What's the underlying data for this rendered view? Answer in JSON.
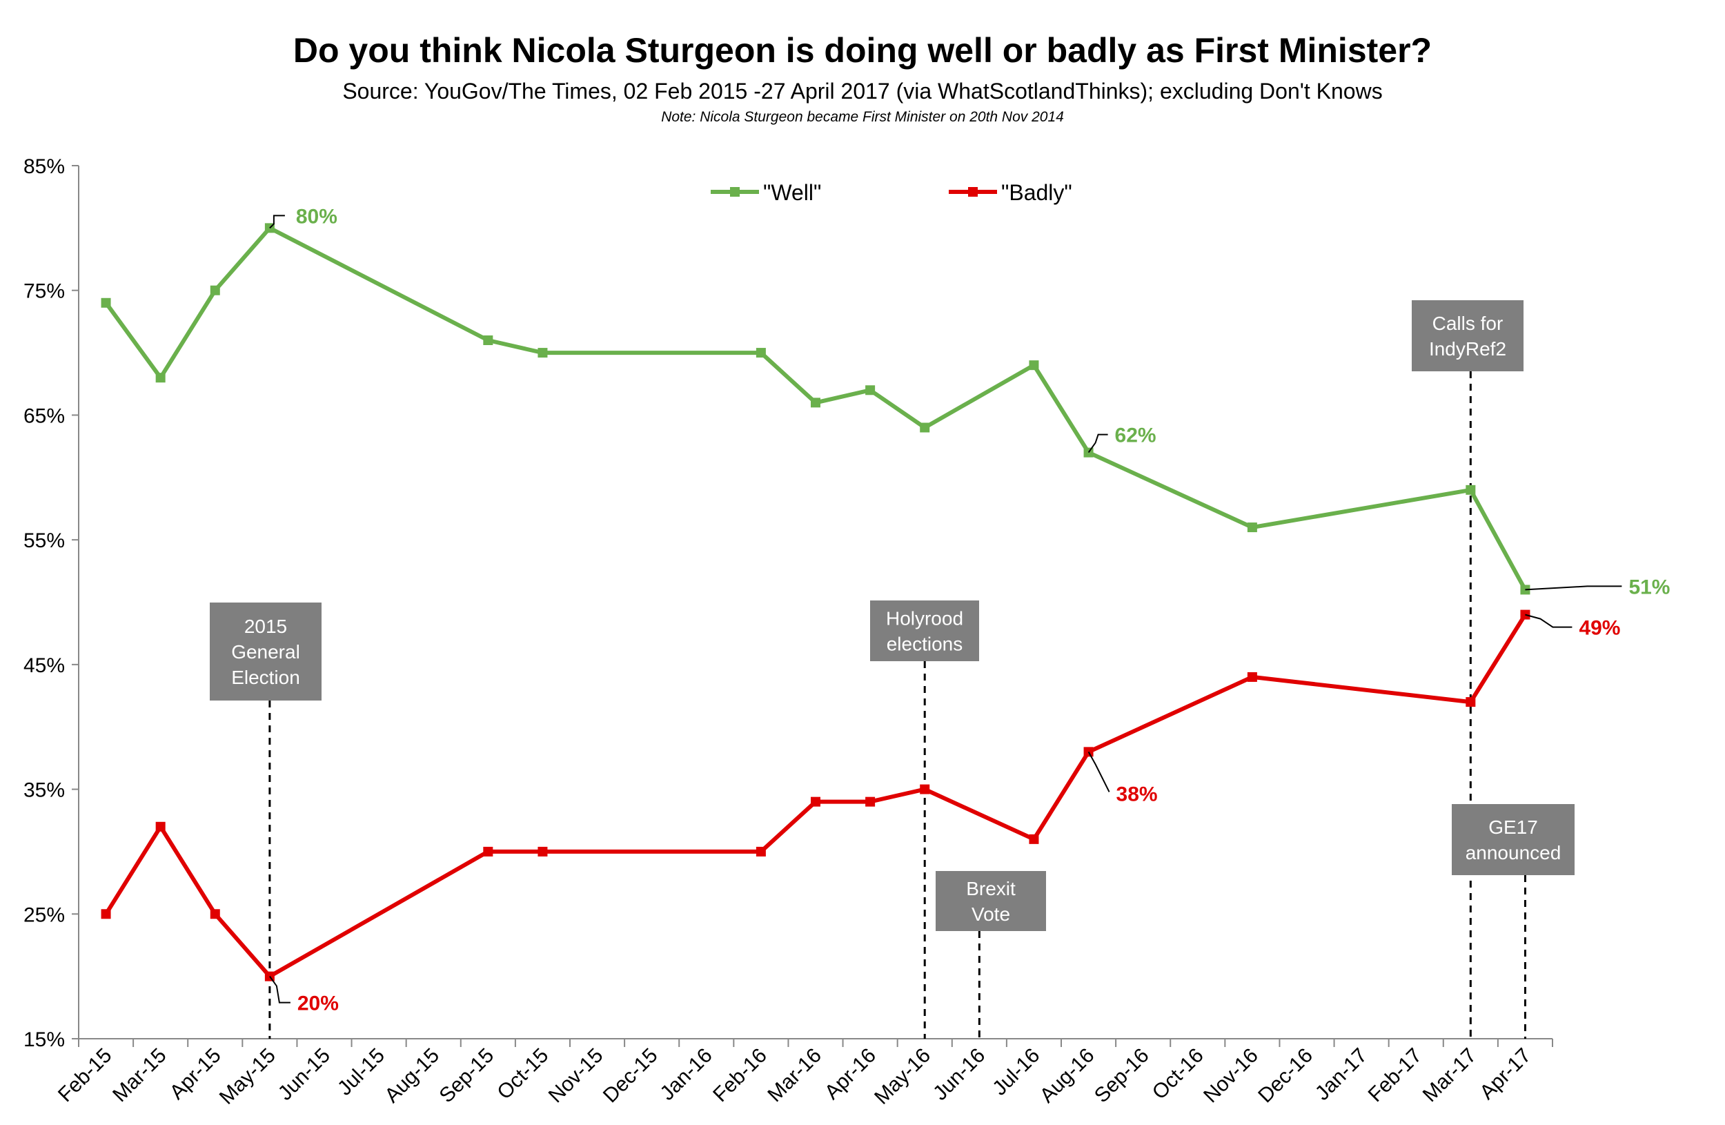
{
  "chart_data": {
    "type": "line",
    "title": "Do you think Nicola Sturgeon is doing well or badly as First Minister?",
    "subtitle": "Source: YouGov/The Times, 02 Feb 2015 -27 April 2017 (via WhatScotlandThinks); excluding Don't Knows",
    "note": "Note: Nicola Sturgeon became First Minister on 20th Nov 2014",
    "xlabel": "",
    "ylabel": "",
    "ylim": [
      15,
      85
    ],
    "y_ticks": [
      "15%",
      "25%",
      "35%",
      "45%",
      "55%",
      "65%",
      "75%",
      "85%"
    ],
    "y_tick_values": [
      15,
      25,
      35,
      45,
      55,
      65,
      75,
      85
    ],
    "categories": [
      "Feb-15",
      "Mar-15",
      "Apr-15",
      "May-15",
      "Jun-15",
      "Jul-15",
      "Aug-15",
      "Sep-15",
      "Oct-15",
      "Nov-15",
      "Dec-15",
      "Jan-16",
      "Feb-16",
      "Mar-16",
      "Apr-16",
      "May-16",
      "Jun-16",
      "Jul-16",
      "Aug-16",
      "Sep-16",
      "Oct-16",
      "Nov-16",
      "Dec-16",
      "Jan-17",
      "Feb-17",
      "Mar-17",
      "Apr-17"
    ],
    "series": [
      {
        "name": "\"Well\"",
        "color": "#6ab04c",
        "x": [
          0,
          1,
          2,
          3,
          7,
          8,
          12,
          13,
          14,
          15,
          17,
          18,
          21,
          25,
          26
        ],
        "values": [
          74,
          68,
          75,
          80,
          71,
          70,
          70,
          66,
          67,
          64,
          69,
          62,
          56,
          59,
          51
        ]
      },
      {
        "name": "\"Badly\"",
        "color": "#e00000",
        "x": [
          0,
          1,
          2,
          3,
          7,
          8,
          12,
          13,
          14,
          15,
          17,
          18,
          21,
          25,
          26
        ],
        "values": [
          25,
          32,
          25,
          20,
          30,
          30,
          30,
          34,
          34,
          35,
          31,
          38,
          44,
          42,
          49
        ]
      }
    ],
    "data_labels": [
      {
        "series": 0,
        "index": 3,
        "text": "80%"
      },
      {
        "series": 0,
        "index": 11,
        "text": "62%"
      },
      {
        "series": 0,
        "index": 14,
        "text": "51%"
      },
      {
        "series": 1,
        "index": 3,
        "text": "20%"
      },
      {
        "series": 1,
        "index": 11,
        "text": "38%"
      },
      {
        "series": 1,
        "index": 14,
        "text": "49%"
      }
    ],
    "annotations": [
      {
        "lines": [
          "2015",
          "General",
          "Election"
        ],
        "x": 3
      },
      {
        "lines": [
          "Holyrood",
          "elections"
        ],
        "x": 15
      },
      {
        "lines": [
          "Brexit",
          "Vote"
        ],
        "x": 16
      },
      {
        "lines": [
          "Calls for",
          "IndyRef2"
        ],
        "x": 25
      },
      {
        "lines": [
          "GE17",
          "announced"
        ],
        "x": 26
      }
    ],
    "legend_position": "top-center",
    "grid": false,
    "annotation_box_color": "#7f7f7f"
  }
}
